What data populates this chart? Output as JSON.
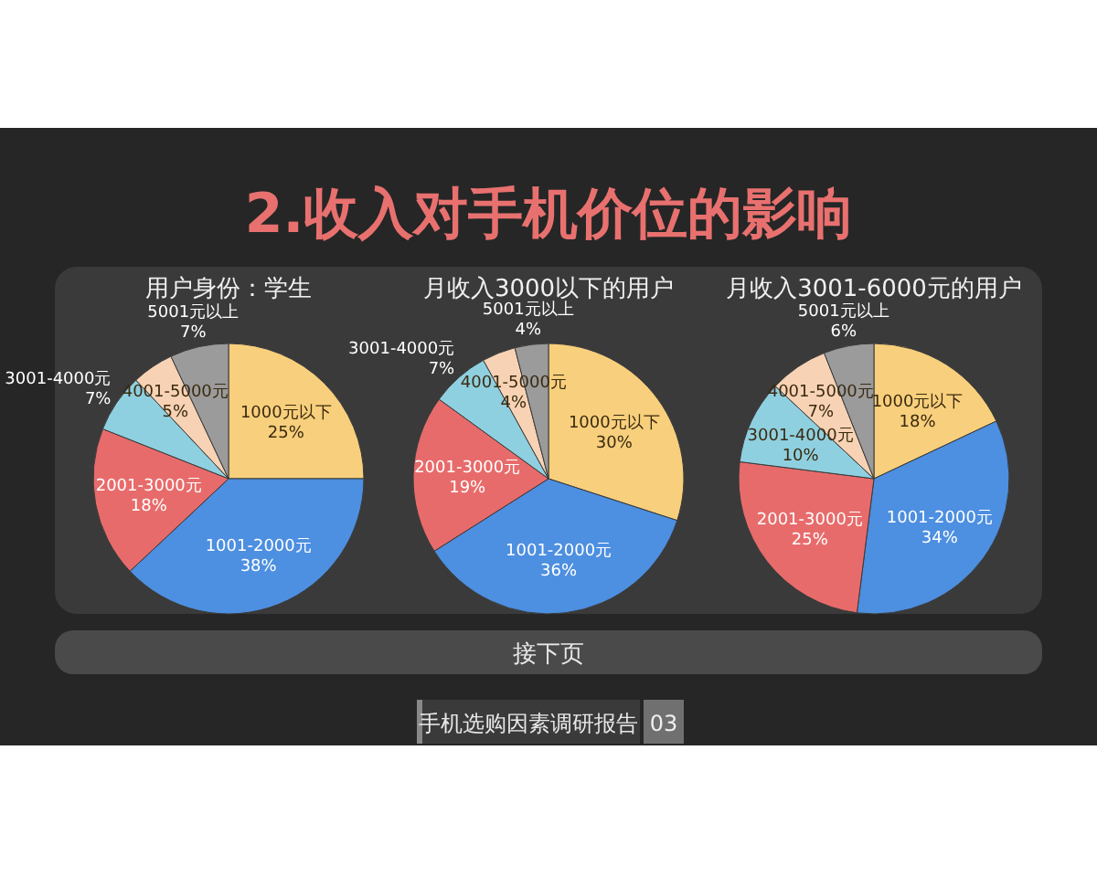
{
  "chart_data": [
    {
      "type": "pie",
      "title": "用户身份：学生",
      "categories": [
        "1000元以下",
        "1001-2000元",
        "2001-3000元",
        "3001-4000元",
        "4001-5000元",
        "5001元以上"
      ],
      "values": [
        25,
        38,
        18,
        7,
        5,
        7
      ],
      "value_labels": [
        "25%",
        "38%",
        "18%",
        "7%",
        "5%",
        "7%"
      ],
      "colors": [
        "#f8cf7c",
        "#4d8fe0",
        "#e86b6b",
        "#8fd0e0",
        "#f7d2b4",
        "#9b9b9b"
      ]
    },
    {
      "type": "pie",
      "title": "月收入3000以下的用户",
      "categories": [
        "1000元以下",
        "1001-2000元",
        "2001-3000元",
        "3001-4000元",
        "4001-5000元",
        "5001元以上"
      ],
      "values": [
        30,
        36,
        19,
        7,
        4,
        4
      ],
      "value_labels": [
        "30%",
        "36%",
        "19%",
        "7%",
        "4%",
        "4%"
      ],
      "colors": [
        "#f8cf7c",
        "#4d8fe0",
        "#e86b6b",
        "#8fd0e0",
        "#f7d2b4",
        "#9b9b9b"
      ]
    },
    {
      "type": "pie",
      "title": "月收入3001-6000元的用户",
      "categories": [
        "1000元以下",
        "1001-2000元",
        "2001-3000元",
        "3001-4000元",
        "4001-5000元",
        "5001元以上"
      ],
      "values": [
        18,
        34,
        25,
        10,
        7,
        6
      ],
      "value_labels": [
        "18%",
        "34%",
        "25%",
        "10%",
        "7%",
        "6%"
      ],
      "colors": [
        "#f8cf7c",
        "#4d8fe0",
        "#e86b6b",
        "#8fd0e0",
        "#f7d2b4",
        "#9b9b9b"
      ]
    },
    {
      "type": "other",
      "title": "2.收入对手机价位的影响",
      "annotations": [
        "接下页",
        "手机选购因素调研报告",
        "03"
      ]
    }
  ]
}
